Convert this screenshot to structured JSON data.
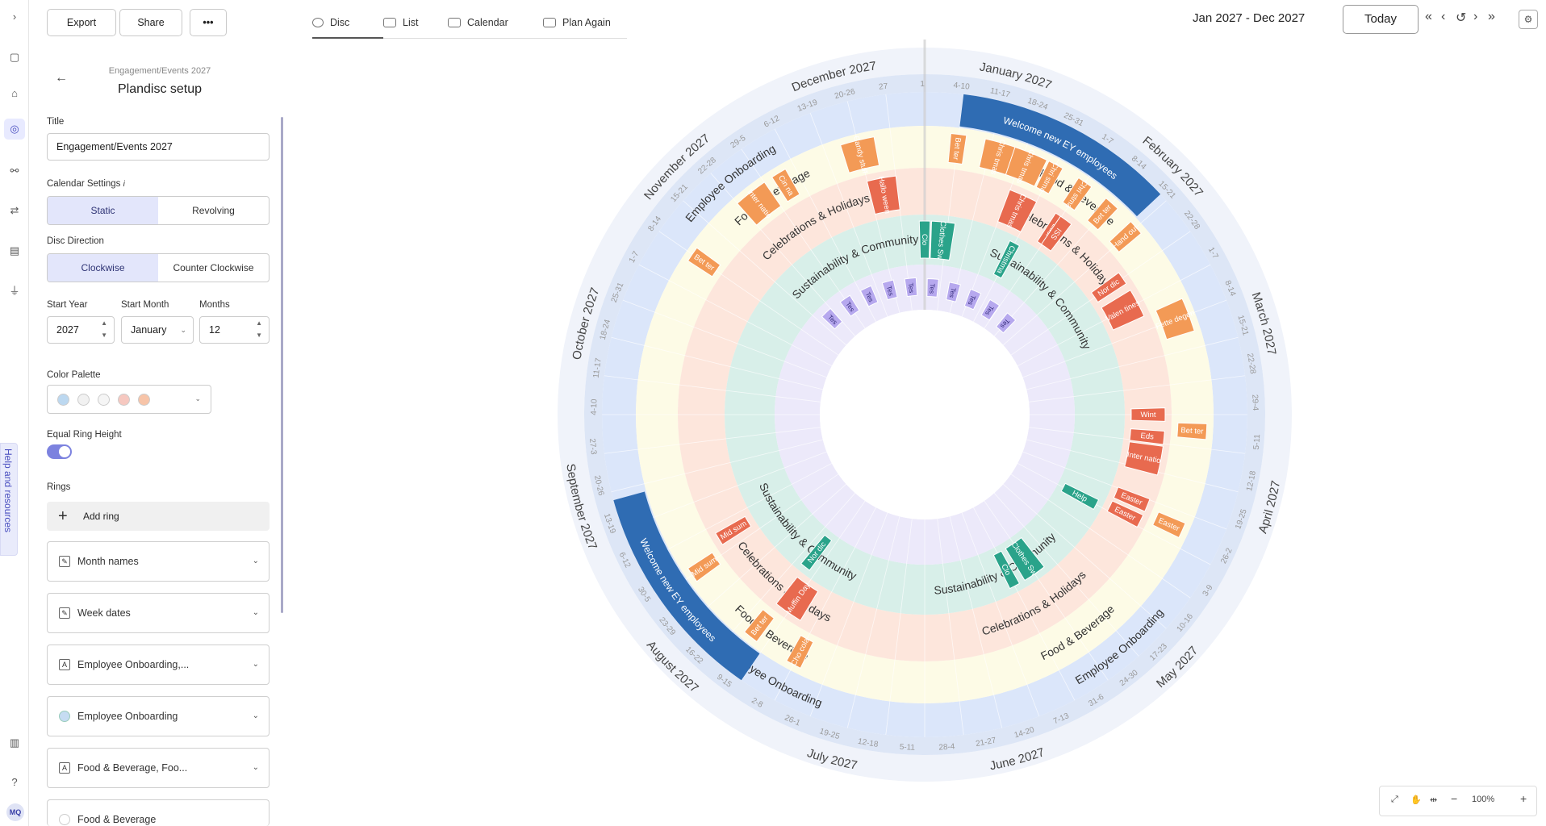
{
  "rail": {
    "avatar": "MQ",
    "help": "Help and resources"
  },
  "toolbar": {
    "export": "Export",
    "share": "Share",
    "more": "•••"
  },
  "panel": {
    "breadcrumb": "Engagement/Events 2027",
    "heading": "Plandisc setup",
    "title_label": "Title",
    "title_value": "Engagement/Events 2027",
    "calendar_label": "Calendar Settings",
    "calendar_info": "i",
    "calendar_options": [
      "Static",
      "Revolving"
    ],
    "direction_label": "Disc Direction",
    "direction_options": [
      "Clockwise",
      "Counter Clockwise"
    ],
    "start_year_label": "Start Year",
    "start_year": "2027",
    "start_month_label": "Start Month",
    "start_month": "January",
    "months_label": "Months",
    "months": "12",
    "palette_label": "Color Palette",
    "palette": [
      "#bcd8f0",
      "#f1f1f1",
      "#f5f5f5",
      "#f6c8c0",
      "#f7c4a8"
    ],
    "equal_label": "Equal Ring Height",
    "rings_label": "Rings",
    "add_ring": "Add ring",
    "rings": [
      "Month names",
      "Week dates",
      "Employee Onboarding,...",
      "Employee Onboarding",
      "Food & Beverage, Foo...",
      "Food & Beverage"
    ]
  },
  "tabs": [
    "Disc",
    "List",
    "Calendar",
    "Plan Again"
  ],
  "date_range": "Jan 2027 - Dec 2027",
  "today": "Today",
  "zoom": "100%",
  "disc": {
    "colors": {
      "month": "#f0f3fa",
      "week": "#dde6f6",
      "onboard": "#dbe6fa",
      "food": "#fdfbe6",
      "celeb": "#fde6dc",
      "sustain": "#d8efe9",
      "inner": "#ece9fa",
      "dark": "#2f6cb3",
      "orange": "#f39a56",
      "red": "#e86a4f",
      "teal": "#2aa38a",
      "purple": "#b6a8ee"
    },
    "months": [
      "January 2027",
      "February 2027",
      "March 2027",
      "April 2027",
      "May 2027",
      "June 2027",
      "July 2027",
      "August 2027",
      "September 2027",
      "October 2027",
      "November 2027",
      "December 2027"
    ],
    "weeks": [
      "4-10",
      "11-17",
      "18-24",
      "25-31",
      "1-7",
      "8-14",
      "15-21",
      "22-28",
      "1-7",
      "8-14",
      "15-21",
      "22-28",
      "29-4",
      "5-11",
      "12-18",
      "19-25",
      "26-2",
      "3-9",
      "10-16",
      "17-23",
      "24-30",
      "31-6",
      "7-13",
      "14-20",
      "21-27",
      "28-4",
      "5-11",
      "12-18",
      "19-25",
      "26-1",
      "2-8",
      "9-15",
      "16-22",
      "23-29",
      "30-5",
      "6-12",
      "13-19",
      "20-26",
      "27-3",
      "4-10",
      "11-17",
      "18-24",
      "25-31",
      "1-7",
      "8-14",
      "15-21",
      "22-28",
      "29-5",
      "6-12",
      "13-19",
      "20-26",
      "27",
      "1"
    ],
    "ring_labels": [
      "Employee Onboarding",
      "Food & Beverage",
      "Celebrations & Holidays",
      "Sustainability & Community"
    ],
    "band_events": [
      {
        "text": "Welcome new EY employees",
        "week": 1
      },
      {
        "text": "Welcome new EY employees",
        "week": 31
      }
    ],
    "events": [
      {
        "t": "Bet ter",
        "ring": "food",
        "w": 6
      },
      {
        "t": "Hand out",
        "ring": "food",
        "w": 7
      },
      {
        "t": "Fette degen",
        "ring": "food",
        "w": 10
      },
      {
        "t": "Nor dic",
        "ring": "celeb",
        "w": 8
      },
      {
        "t": "Valen tines",
        "ring": "celeb",
        "w": 9
      },
      {
        "t": "Wint",
        "ring": "celeb",
        "w": 13
      },
      {
        "t": "Eds",
        "ring": "celeb",
        "w": 13.8
      },
      {
        "t": "Inter natio",
        "ring": "celeb",
        "w": 14.6
      },
      {
        "t": "Bet ter",
        "ring": "food",
        "w": 13.5
      },
      {
        "t": "Easter",
        "ring": "celeb",
        "w": 16.2
      },
      {
        "t": "Easter",
        "ring": "celeb",
        "w": 16.8
      },
      {
        "t": "Easter",
        "ring": "food",
        "w": 16.5
      },
      {
        "t": "Help",
        "ring": "sustain",
        "w": 17
      },
      {
        "t": "Clothes Sw",
        "ring": "sustain",
        "w": 21
      },
      {
        "t": "Clo",
        "ring": "sustain",
        "w": 22
      },
      {
        "t": "Cho cola",
        "ring": "food",
        "w": 30
      },
      {
        "t": "Bet ter",
        "ring": "food",
        "w": 31.5
      },
      {
        "t": "Muffin Day",
        "ring": "celeb",
        "w": 31
      },
      {
        "t": "Nor dic",
        "ring": "sustain",
        "w": 31.5
      },
      {
        "t": "Mid sum",
        "ring": "celeb",
        "w": 34.5
      },
      {
        "t": "Mid sum",
        "ring": "food",
        "w": 34
      },
      {
        "t": "Bet ter",
        "ring": "food",
        "w": 44
      },
      {
        "t": "Inter natio",
        "ring": "food",
        "w": 46.5
      },
      {
        "t": "Cin na",
        "ring": "food",
        "w": 47.5
      },
      {
        "t": "Candy stuff",
        "ring": "food",
        "w": 50
      },
      {
        "t": "Hallo ween",
        "ring": "celeb",
        "w": 50.5
      },
      {
        "t": "Bet ter",
        "ring": "food",
        "w": 53
      },
      {
        "t": "Chris tmas",
        "ring": "food",
        "w": 54.3
      },
      {
        "t": "Chris tmas",
        "ring": "food",
        "w": 55.2
      },
      {
        "t": "Chri stma",
        "ring": "food",
        "w": 56
      },
      {
        "t": "Chri stma",
        "ring": "food",
        "w": 57
      },
      {
        "t": "Chris tmas",
        "ring": "celeb",
        "w": 55.5
      },
      {
        "t": "Luci",
        "ring": "celeb",
        "w": 57
      },
      {
        "t": "ISS",
        "ring": "celeb",
        "w": 57.2
      },
      {
        "t": "Clo",
        "ring": "sustain",
        "w": 52
      },
      {
        "t": "Clothes Sw",
        "ring": "sustain",
        "w": 52.8
      },
      {
        "t": "Christma",
        "ring": "sustain",
        "w": 56
      }
    ],
    "inner_events": [
      "Tes",
      "Tes",
      "Tes",
      "Tes",
      "Tes",
      "Tes",
      "Tes",
      "Tes",
      "Tes",
      "Tes"
    ]
  }
}
